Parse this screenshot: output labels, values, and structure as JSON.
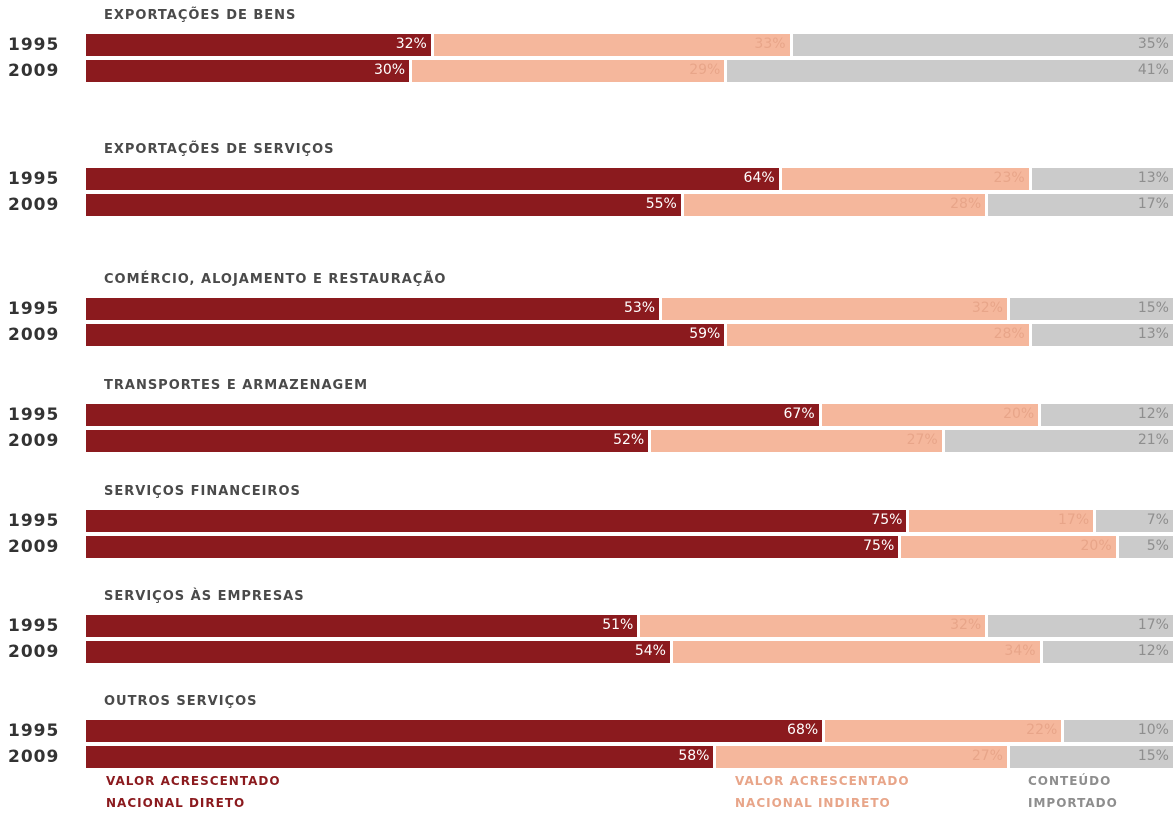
{
  "chart_data": {
    "type": "bar",
    "stacked": true,
    "orientation": "horizontal",
    "unit": "%",
    "xlim": [
      0,
      100
    ],
    "groups": [
      {
        "title": "EXPORTAÇÕES DE BENS",
        "rows": [
          {
            "year": "1995",
            "values": [
              32,
              33,
              35
            ]
          },
          {
            "year": "2009",
            "values": [
              30,
              29,
              41
            ]
          }
        ]
      },
      {
        "title": "EXPORTAÇÕES DE SERVIÇOS",
        "rows": [
          {
            "year": "1995",
            "values": [
              64,
              23,
              13
            ]
          },
          {
            "year": "2009",
            "values": [
              55,
              28,
              17
            ]
          }
        ]
      },
      {
        "title": "COMÉRCIO, ALOJAMENTO E RESTAURAÇÃO",
        "rows": [
          {
            "year": "1995",
            "values": [
              53,
              32,
              15
            ]
          },
          {
            "year": "2009",
            "values": [
              59,
              28,
              13
            ]
          }
        ]
      },
      {
        "title": "TRANSPORTES E ARMAZENAGEM",
        "rows": [
          {
            "year": "1995",
            "values": [
              67,
              20,
              12
            ]
          },
          {
            "year": "2009",
            "values": [
              52,
              27,
              21
            ]
          }
        ]
      },
      {
        "title": "SERVIÇOS FINANCEIROS",
        "rows": [
          {
            "year": "1995",
            "values": [
              75,
              17,
              7
            ]
          },
          {
            "year": "2009",
            "values": [
              75,
              20,
              5
            ]
          }
        ]
      },
      {
        "title": "SERVIÇOS ÀS EMPRESAS",
        "rows": [
          {
            "year": "1995",
            "values": [
              51,
              32,
              17
            ]
          },
          {
            "year": "2009",
            "values": [
              54,
              34,
              12
            ]
          }
        ]
      },
      {
        "title": "OUTROS SERVIÇOS",
        "rows": [
          {
            "year": "1995",
            "values": [
              68,
              22,
              10
            ]
          },
          {
            "year": "2009",
            "values": [
              58,
              27,
              15
            ]
          }
        ]
      }
    ],
    "series": [
      {
        "name": "VALOR ACRESCENTADO NACIONAL DIRETO",
        "lines": [
          "VALOR ACRESCENTADO",
          "NACIONAL DIRETO"
        ],
        "color": "#8b1a1e",
        "label_color": "#ffffff"
      },
      {
        "name": "VALOR ACRESCENTADO NACIONAL INDIRETO",
        "lines": [
          "VALOR ACRESCENTADO",
          "NACIONAL INDIRETO"
        ],
        "color": "#f5b79c",
        "label_color": "#e8a589"
      },
      {
        "name": "CONTEÚDO IMPORTADO",
        "lines": [
          "CONTEÚDO",
          "IMPORTADO"
        ],
        "color": "#cbcbcb",
        "label_color": "#8e8e8e"
      }
    ],
    "legend_position": "bottom"
  }
}
